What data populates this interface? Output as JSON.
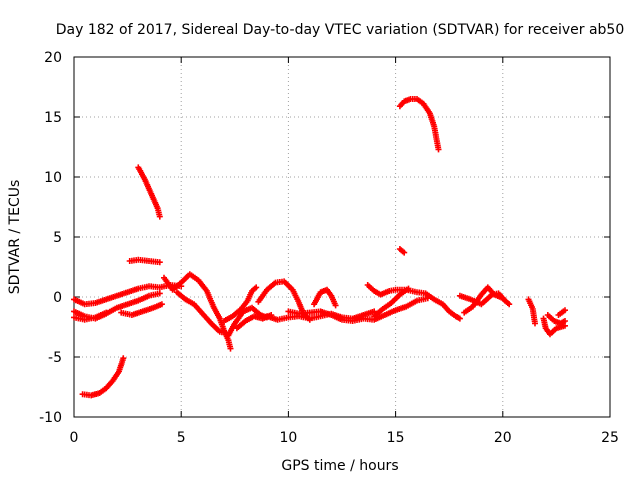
{
  "chart_data": {
    "type": "scatter",
    "title": "Day 182 of 2017, Sidereal Day-to-day VTEC variation (SDTVAR) for receiver ab50",
    "xlabel": "GPS time / hours",
    "ylabel": "SDTVAR / TECUs",
    "xlim": [
      0,
      25
    ],
    "ylim": [
      -10,
      20
    ],
    "xticks": [
      "0",
      "5",
      "10",
      "15",
      "20",
      "25"
    ],
    "yticks": [
      "-10",
      "-5",
      "0",
      "5",
      "10",
      "15",
      "20"
    ],
    "grid": true,
    "marker": "+",
    "series": [
      {
        "name": "SDTVAR",
        "color": "#ff0000",
        "segments": [
          [
            [
              0.4,
              -8.1
            ],
            [
              0.8,
              -8.2
            ],
            [
              1.2,
              -8.0
            ],
            [
              1.5,
              -7.6
            ],
            [
              1.8,
              -7.0
            ],
            [
              2.1,
              -6.2
            ],
            [
              2.3,
              -5.1
            ]
          ],
          [
            [
              3.0,
              10.8
            ],
            [
              3.3,
              9.8
            ],
            [
              3.6,
              8.6
            ],
            [
              3.9,
              7.4
            ],
            [
              4.0,
              6.7
            ]
          ],
          [
            [
              2.6,
              3.0
            ],
            [
              3.0,
              3.1
            ],
            [
              3.5,
              3.0
            ],
            [
              4.0,
              2.9
            ]
          ],
          [
            [
              0.0,
              -0.2
            ],
            [
              0.5,
              -0.6
            ],
            [
              1.0,
              -0.5
            ],
            [
              1.5,
              -0.2
            ],
            [
              2.0,
              0.1
            ],
            [
              2.5,
              0.4
            ],
            [
              3.0,
              0.7
            ],
            [
              3.5,
              0.9
            ],
            [
              4.0,
              0.8
            ],
            [
              4.5,
              1.0
            ],
            [
              5.0,
              0.9
            ]
          ],
          [
            [
              0.0,
              -1.2
            ],
            [
              0.5,
              -1.6
            ],
            [
              1.0,
              -1.8
            ],
            [
              1.5,
              -1.4
            ],
            [
              2.0,
              -0.9
            ],
            [
              2.5,
              -0.6
            ],
            [
              3.0,
              -0.3
            ],
            [
              3.5,
              0.1
            ],
            [
              4.0,
              0.3
            ]
          ],
          [
            [
              0.0,
              -1.7
            ],
            [
              0.5,
              -1.9
            ],
            [
              1.0,
              -1.7
            ],
            [
              1.5,
              -1.3
            ]
          ],
          [
            [
              2.2,
              -1.3
            ],
            [
              2.7,
              -1.5
            ],
            [
              3.2,
              -1.2
            ],
            [
              3.7,
              -0.9
            ],
            [
              4.1,
              -0.6
            ]
          ],
          [
            [
              4.2,
              1.6
            ],
            [
              4.6,
              0.6
            ],
            [
              5.0,
              1.2
            ],
            [
              5.4,
              1.9
            ],
            [
              5.8,
              1.4
            ],
            [
              6.2,
              0.5
            ],
            [
              6.5,
              -0.8
            ],
            [
              6.8,
              -1.8
            ],
            [
              7.0,
              -2.8
            ],
            [
              7.2,
              -3.6
            ],
            [
              7.3,
              -4.3
            ]
          ],
          [
            [
              4.8,
              0.4
            ],
            [
              5.2,
              -0.2
            ],
            [
              5.6,
              -0.6
            ],
            [
              6.0,
              -1.4
            ],
            [
              6.4,
              -2.2
            ],
            [
              6.8,
              -2.9
            ],
            [
              7.1,
              -3.0
            ]
          ],
          [
            [
              7.0,
              -2.0
            ],
            [
              7.4,
              -1.6
            ],
            [
              7.8,
              -1.0
            ],
            [
              8.1,
              -0.3
            ],
            [
              8.3,
              0.5
            ],
            [
              8.5,
              0.8
            ]
          ],
          [
            [
              7.2,
              -3.2
            ],
            [
              7.5,
              -2.2
            ],
            [
              7.9,
              -1.2
            ],
            [
              8.3,
              -0.9
            ],
            [
              8.7,
              -1.5
            ],
            [
              9.0,
              -1.7
            ]
          ],
          [
            [
              7.6,
              -2.6
            ],
            [
              8.0,
              -2.0
            ],
            [
              8.4,
              -1.6
            ],
            [
              8.8,
              -1.8
            ],
            [
              9.2,
              -1.5
            ]
          ],
          [
            [
              8.6,
              -0.4
            ],
            [
              9.0,
              0.6
            ],
            [
              9.4,
              1.2
            ],
            [
              9.8,
              1.3
            ],
            [
              10.2,
              0.6
            ],
            [
              10.5,
              -0.5
            ],
            [
              10.7,
              -1.4
            ],
            [
              11.0,
              -1.9
            ]
          ],
          [
            [
              9.0,
              -1.6
            ],
            [
              9.5,
              -1.9
            ],
            [
              10.0,
              -1.7
            ],
            [
              10.5,
              -1.6
            ],
            [
              11.0,
              -1.8
            ],
            [
              11.5,
              -1.6
            ],
            [
              12.0,
              -1.4
            ],
            [
              12.5,
              -1.7
            ],
            [
              13.0,
              -1.8
            ],
            [
              13.5,
              -1.5
            ],
            [
              14.0,
              -1.2
            ]
          ],
          [
            [
              10.0,
              -1.2
            ],
            [
              10.5,
              -1.4
            ],
            [
              11.0,
              -1.3
            ],
            [
              11.5,
              -1.2
            ],
            [
              12.0,
              -1.5
            ],
            [
              12.5,
              -1.9
            ],
            [
              13.0,
              -2.0
            ],
            [
              13.5,
              -1.8
            ],
            [
              14.0,
              -1.9
            ],
            [
              14.5,
              -1.5
            ],
            [
              15.0,
              -1.1
            ],
            [
              15.5,
              -0.8
            ],
            [
              16.0,
              -0.3
            ],
            [
              16.5,
              -0.1
            ]
          ],
          [
            [
              11.2,
              -0.6
            ],
            [
              11.5,
              0.4
            ],
            [
              11.8,
              0.6
            ],
            [
              12.0,
              0.1
            ],
            [
              12.2,
              -0.7
            ]
          ],
          [
            [
              13.7,
              1.0
            ],
            [
              14.0,
              0.5
            ],
            [
              14.3,
              0.2
            ],
            [
              14.7,
              0.5
            ],
            [
              15.0,
              0.6
            ],
            [
              15.5,
              0.6
            ],
            [
              16.0,
              0.4
            ],
            [
              16.4,
              0.3
            ],
            [
              16.8,
              -0.2
            ],
            [
              17.2,
              -0.6
            ],
            [
              17.5,
              -1.2
            ],
            [
              17.8,
              -1.6
            ],
            [
              18.0,
              -1.8
            ]
          ],
          [
            [
              14.0,
              -1.6
            ],
            [
              14.4,
              -1.0
            ],
            [
              14.8,
              -0.5
            ],
            [
              15.2,
              0.2
            ],
            [
              15.6,
              0.7
            ]
          ],
          [
            [
              15.2,
              4.0
            ],
            [
              15.4,
              3.7
            ]
          ],
          [
            [
              15.2,
              15.9
            ],
            [
              15.4,
              16.3
            ],
            [
              15.7,
              16.5
            ],
            [
              16.0,
              16.5
            ],
            [
              16.3,
              16.1
            ],
            [
              16.6,
              15.3
            ],
            [
              16.8,
              14.2
            ],
            [
              17.0,
              12.3
            ]
          ],
          [
            [
              18.0,
              0.1
            ],
            [
              18.5,
              -0.2
            ],
            [
              19.0,
              -0.6
            ],
            [
              19.5,
              0.2
            ],
            [
              19.8,
              0.3
            ],
            [
              20.1,
              -0.3
            ],
            [
              20.3,
              -0.6
            ]
          ],
          [
            [
              18.2,
              -1.3
            ],
            [
              18.6,
              -0.8
            ],
            [
              19.0,
              0.2
            ],
            [
              19.3,
              0.8
            ],
            [
              19.6,
              0.2
            ],
            [
              20.0,
              -0.1
            ]
          ],
          [
            [
              21.2,
              -0.2
            ],
            [
              21.4,
              -1.0
            ],
            [
              21.5,
              -2.2
            ]
          ],
          [
            [
              21.9,
              -1.8
            ],
            [
              22.0,
              -2.6
            ],
            [
              22.2,
              -3.1
            ],
            [
              22.5,
              -2.6
            ],
            [
              22.9,
              -2.4
            ]
          ],
          [
            [
              22.1,
              -1.5
            ],
            [
              22.4,
              -2.0
            ],
            [
              22.7,
              -2.2
            ],
            [
              22.9,
              -2.0
            ]
          ],
          [
            [
              22.6,
              -1.5
            ],
            [
              22.9,
              -1.1
            ]
          ]
        ]
      }
    ]
  }
}
